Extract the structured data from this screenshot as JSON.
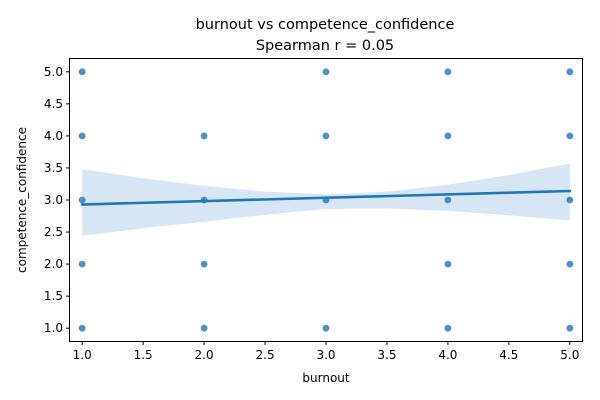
{
  "chart_data": {
    "type": "scatter",
    "title": "burnout vs competence_confidence",
    "subtitle": "Spearman r = 0.05",
    "xlabel": "burnout",
    "ylabel": "competence_confidence",
    "xlim": [
      0.9,
      5.1
    ],
    "ylim": [
      0.8,
      5.2
    ],
    "xticks": [
      "1.0",
      "1.5",
      "2.0",
      "2.5",
      "3.0",
      "3.5",
      "4.0",
      "4.5",
      "5.0"
    ],
    "yticks": [
      "1.0",
      "1.5",
      "2.0",
      "2.5",
      "3.0",
      "3.5",
      "4.0",
      "4.5",
      "5.0"
    ],
    "grid": false,
    "points": [
      {
        "x": 1,
        "y": 5
      },
      {
        "x": 1,
        "y": 4
      },
      {
        "x": 1,
        "y": 3
      },
      {
        "x": 1,
        "y": 2
      },
      {
        "x": 1,
        "y": 1
      },
      {
        "x": 2,
        "y": 4
      },
      {
        "x": 2,
        "y": 3
      },
      {
        "x": 2,
        "y": 2
      },
      {
        "x": 2,
        "y": 1
      },
      {
        "x": 3,
        "y": 5
      },
      {
        "x": 3,
        "y": 4
      },
      {
        "x": 3,
        "y": 3
      },
      {
        "x": 3,
        "y": 1
      },
      {
        "x": 4,
        "y": 5
      },
      {
        "x": 4,
        "y": 4
      },
      {
        "x": 4,
        "y": 3
      },
      {
        "x": 4,
        "y": 2
      },
      {
        "x": 4,
        "y": 1
      },
      {
        "x": 5,
        "y": 5
      },
      {
        "x": 5,
        "y": 4
      },
      {
        "x": 5,
        "y": 3
      },
      {
        "x": 5,
        "y": 2
      },
      {
        "x": 5,
        "y": 1
      }
    ],
    "regression": {
      "x": [
        1,
        5
      ],
      "y": [
        2.93,
        3.14
      ]
    },
    "confidence_band": {
      "x": [
        1,
        1.5,
        2,
        2.5,
        3,
        3.5,
        4,
        4.5,
        5
      ],
      "upper": [
        3.48,
        3.34,
        3.22,
        3.13,
        3.09,
        3.13,
        3.24,
        3.39,
        3.57
      ],
      "lower": [
        2.44,
        2.56,
        2.66,
        2.77,
        2.86,
        2.87,
        2.83,
        2.76,
        2.68
      ]
    },
    "colors": {
      "points": "#1f77b4",
      "line": "#1f77b4",
      "band": "#c6dbef"
    }
  }
}
